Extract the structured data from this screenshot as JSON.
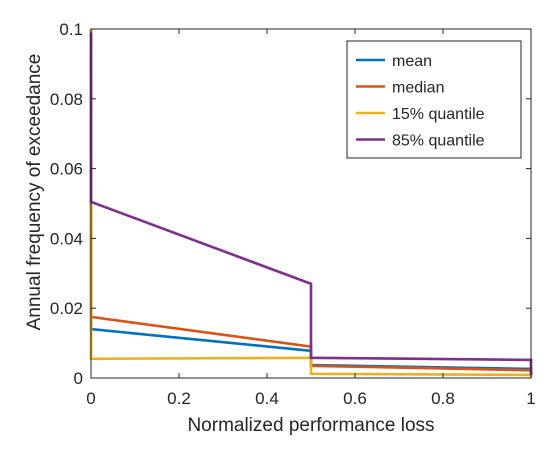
{
  "chart_data": {
    "type": "line",
    "title": "",
    "xlabel": "Normalized performance loss",
    "ylabel": "Annual frequency of exceedance",
    "xlim": [
      0,
      1
    ],
    "ylim": [
      0,
      0.1
    ],
    "xticks": [
      0,
      0.2,
      0.4,
      0.6,
      0.8,
      1
    ],
    "xtick_labels": [
      "0",
      "0.2",
      "0.4",
      "0.6",
      "0.8",
      "1"
    ],
    "yticks": [
      0,
      0.02,
      0.04,
      0.06,
      0.08,
      0.1
    ],
    "ytick_labels": [
      "0",
      "0.02",
      "0.04",
      "0.06",
      "0.08",
      "0.1"
    ],
    "grid": false,
    "box": true,
    "legend_position": "top-right",
    "series": [
      {
        "name": "mean",
        "color": "#0072BD",
        "x": [
          0,
          0,
          0.5,
          0.5,
          1,
          1
        ],
        "y": [
          0.1,
          0.014,
          0.0078,
          0.0037,
          0.0026,
          0.0008
        ]
      },
      {
        "name": "median",
        "color": "#D95319",
        "x": [
          0,
          0,
          0.5,
          0.5,
          1,
          1
        ],
        "y": [
          0.1,
          0.0175,
          0.009,
          0.0035,
          0.0022,
          0.0005
        ]
      },
      {
        "name": "15% quantile",
        "color": "#EDB120",
        "x": [
          0,
          0,
          0.5,
          0.5,
          1,
          1
        ],
        "y": [
          0.1,
          0.0055,
          0.0058,
          0.0012,
          0.0009,
          0.0002
        ]
      },
      {
        "name": "85% quantile",
        "color": "#7E2F8E",
        "x": [
          0,
          0,
          0.5,
          0.5,
          1,
          1
        ],
        "y": [
          0.099,
          0.0505,
          0.027,
          0.0058,
          0.0052,
          0.0008
        ]
      }
    ]
  }
}
